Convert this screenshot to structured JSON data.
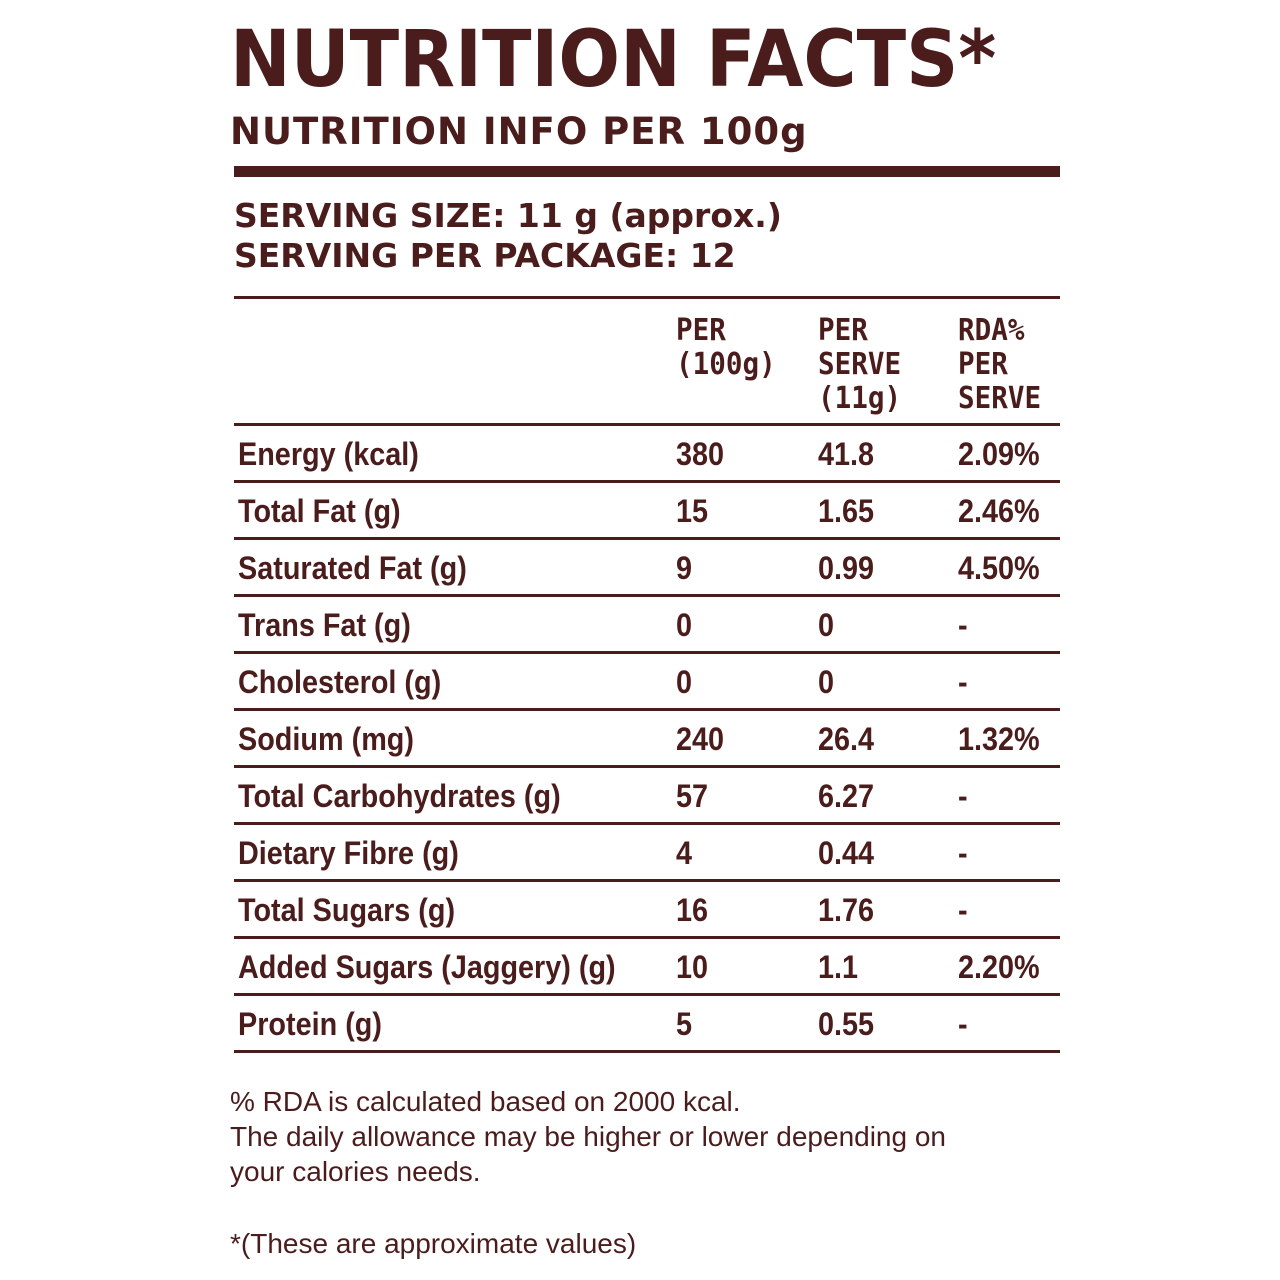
{
  "title": "NUTRITION FACTS*",
  "subtitle": "NUTRITION INFO PER 100g",
  "serving_size": "SERVING SIZE: 11 g (approx.)",
  "serving_per_package": "SERVING PER PACKAGE: 12",
  "table": {
    "headers": {
      "per100": "PER\n(100g)",
      "per_serve": "PER\nSERVE\n(11g)",
      "rda": "RDA%\nPER\nSERVE"
    },
    "rows": [
      {
        "name": "Energy (kcal)",
        "per100": "380",
        "per_serve": "41.8",
        "rda": "2.09%"
      },
      {
        "name": "Total Fat (g)",
        "per100": "15",
        "per_serve": "1.65",
        "rda": "2.46%"
      },
      {
        "name": "Saturated Fat (g)",
        "per100": "9",
        "per_serve": "0.99",
        "rda": "4.50%"
      },
      {
        "name": "Trans Fat (g)",
        "per100": "0",
        "per_serve": "0",
        "rda": "-"
      },
      {
        "name": "Cholesterol (g)",
        "per100": "0",
        "per_serve": "0",
        "rda": "-"
      },
      {
        "name": "Sodium (mg)",
        "per100": "240",
        "per_serve": "26.4",
        "rda": "1.32%"
      },
      {
        "name": "Total Carbohydrates (g)",
        "per100": "57",
        "per_serve": "6.27",
        "rda": "-"
      },
      {
        "name": "Dietary Fibre (g)",
        "per100": "4",
        "per_serve": "0.44",
        "rda": "-"
      },
      {
        "name": "Total Sugars (g)",
        "per100": "16",
        "per_serve": "1.76",
        "rda": "-"
      },
      {
        "name": "Added Sugars (Jaggery) (g)",
        "per100": "10",
        "per_serve": "1.1",
        "rda": "2.20%"
      },
      {
        "name": "Protein (g)",
        "per100": "5",
        "per_serve": "0.55",
        "rda": "-"
      }
    ]
  },
  "notes": {
    "line1": "% RDA is calculated based on 2000 kcal.",
    "line2": "The daily allowance may be higher or lower depending on",
    "line3": "your calories needs.",
    "footnote": "*(These are approximate values)"
  },
  "colors": {
    "text": "#4a1c1c",
    "background": "#ffffff"
  }
}
